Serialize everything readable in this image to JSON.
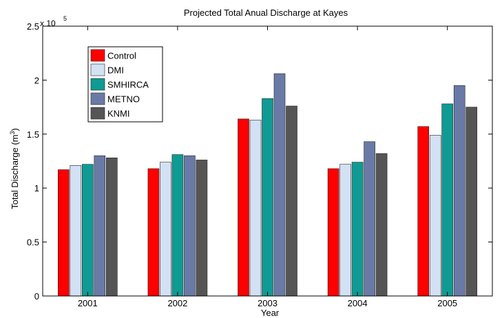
{
  "chart_data": {
    "type": "bar",
    "title": "Projected Total Anual Discharge at Kayes",
    "xlabel": "Year",
    "ylabel": "Total Discharge (m",
    "ylabel_sup": "3",
    "ylabel_close": ")",
    "exponent_base": "x 10",
    "exponent_power": "5",
    "categories": [
      "2001",
      "2002",
      "2003",
      "2004",
      "2005"
    ],
    "ylim": [
      0,
      250000
    ],
    "yticks": [
      0,
      50000,
      100000,
      150000,
      200000,
      250000
    ],
    "ytick_labels": [
      "0",
      "0.5",
      "1",
      "1.5",
      "2",
      "2.5"
    ],
    "grid": false,
    "legend_position": "top-left",
    "series": [
      {
        "name": "Control",
        "color": "#ff0000",
        "values": [
          117000,
          118000,
          164000,
          118000,
          157000
        ]
      },
      {
        "name": "DMI",
        "color": "#d3e1f5",
        "values": [
          121000,
          124000,
          163000,
          122000,
          149000
        ]
      },
      {
        "name": "SMHIRCA",
        "color": "#0f9a94",
        "values": [
          122000,
          131000,
          183000,
          124000,
          178000
        ]
      },
      {
        "name": "METNO",
        "color": "#6a7aa6",
        "values": [
          130000,
          130000,
          206000,
          143000,
          195000
        ]
      },
      {
        "name": "KNMI",
        "color": "#555555",
        "values": [
          128000,
          126000,
          176000,
          132000,
          175000
        ]
      }
    ]
  }
}
